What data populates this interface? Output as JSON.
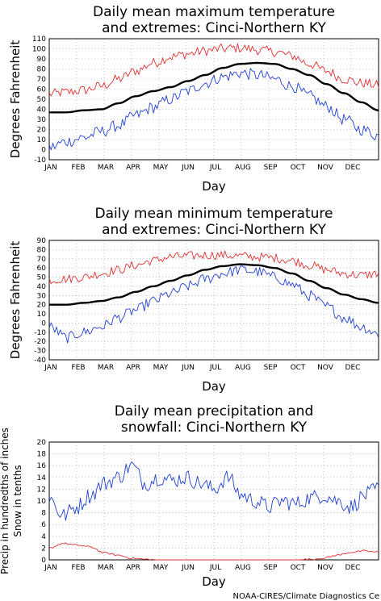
{
  "colors": {
    "mean": "#000000",
    "maxExtreme": "#e03030",
    "minExtreme": "#2040d0",
    "precip": "#2040d0",
    "snow": "#e03030",
    "grid": "#999999"
  },
  "credit": "NOAA-CIRES/Climate Diagnostics Ce",
  "chart_data": [
    {
      "type": "line",
      "title": [
        "Daily mean maximum temperature",
        "and extremes: Cinci-Northern KY"
      ],
      "xlabel": "Day",
      "ylabel": "Degrees Fahrenheit",
      "xticks": [
        "JAN",
        "FEB",
        "MAR",
        "APR",
        "MAY",
        "JUN",
        "JUL",
        "AUG",
        "SEP",
        "OCT",
        "NOV",
        "DEC"
      ],
      "ylim": [
        -10,
        110
      ],
      "yticks": [
        -10,
        0,
        10,
        20,
        30,
        40,
        50,
        60,
        70,
        80,
        90,
        100,
        110
      ],
      "grid": true,
      "series": [
        {
          "role": "max-extreme",
          "values": [
            55,
            57,
            59,
            63,
            70,
            78,
            86,
            92,
            95,
            98,
            100,
            101,
            99,
            97,
            93,
            85,
            78,
            70,
            66,
            64
          ]
        },
        {
          "role": "mean",
          "values": [
            37,
            37,
            39,
            40,
            46,
            53,
            58,
            62,
            68,
            74,
            81,
            85,
            86,
            85,
            80,
            74,
            65,
            56,
            47,
            39
          ]
        },
        {
          "role": "min-extreme",
          "values": [
            2,
            8,
            12,
            18,
            24,
            34,
            42,
            50,
            58,
            66,
            72,
            76,
            74,
            70,
            63,
            53,
            43,
            30,
            20,
            14
          ]
        }
      ]
    },
    {
      "type": "line",
      "title": [
        "Daily mean minimum temperature",
        "and extremes: Cinci-Northern KY"
      ],
      "xlabel": "Day",
      "ylabel": "Degrees Fahrenheit",
      "xticks": [
        "JAN",
        "FEB",
        "MAR",
        "APR",
        "MAY",
        "JUN",
        "JUL",
        "AUG",
        "SEP",
        "OCT",
        "NOV",
        "DEC"
      ],
      "ylim": [
        -40,
        90
      ],
      "yticks": [
        -40,
        -30,
        -20,
        -10,
        0,
        10,
        20,
        30,
        40,
        50,
        60,
        70,
        80,
        90
      ],
      "grid": true,
      "series": [
        {
          "role": "max-extreme",
          "values": [
            47,
            48,
            50,
            54,
            58,
            63,
            68,
            72,
            73,
            74,
            74,
            73,
            72,
            71,
            68,
            63,
            58,
            54,
            52,
            54
          ]
        },
        {
          "role": "mean",
          "values": [
            20,
            20,
            22,
            24,
            28,
            34,
            40,
            46,
            52,
            58,
            62,
            64,
            63,
            60,
            54,
            46,
            38,
            31,
            26,
            22
          ]
        },
        {
          "role": "min-extreme",
          "values": [
            -4,
            -16,
            -10,
            -4,
            6,
            14,
            24,
            32,
            40,
            48,
            54,
            58,
            56,
            50,
            42,
            30,
            18,
            6,
            -4,
            -12
          ]
        }
      ]
    },
    {
      "type": "line",
      "title": [
        "Daily mean precipitation and",
        "snowfall: Cinci-Northern KY"
      ],
      "xlabel": "Day",
      "ylabel": [
        "Precip in hundredths of inches",
        "Snow in tenths"
      ],
      "xticks": [
        "JAN",
        "FEB",
        "MAR",
        "APR",
        "MAY",
        "JUN",
        "JUL",
        "AUG",
        "SEP",
        "OCT",
        "NOV",
        "DEC"
      ],
      "ylim": [
        0,
        20
      ],
      "yticks": [
        0,
        2,
        4,
        6,
        8,
        10,
        12,
        14,
        16,
        18,
        20
      ],
      "grid": true,
      "series": [
        {
          "role": "precipitation",
          "values": [
            10.5,
            7.5,
            9,
            11,
            13,
            14,
            16,
            13,
            14,
            13.5,
            14,
            13,
            12,
            14,
            11,
            10,
            9,
            10,
            9.5,
            10.5,
            11,
            10,
            9,
            11,
            12
          ]
        },
        {
          "role": "snowfall",
          "values": [
            2,
            2.8,
            2.5,
            2.2,
            1.2,
            0.8,
            0.3,
            0.1,
            0,
            0,
            0,
            0,
            0,
            0,
            0,
            0,
            0,
            0,
            0,
            0.1,
            0.3,
            0.8,
            1.3,
            1.5,
            1.3
          ]
        }
      ]
    }
  ]
}
